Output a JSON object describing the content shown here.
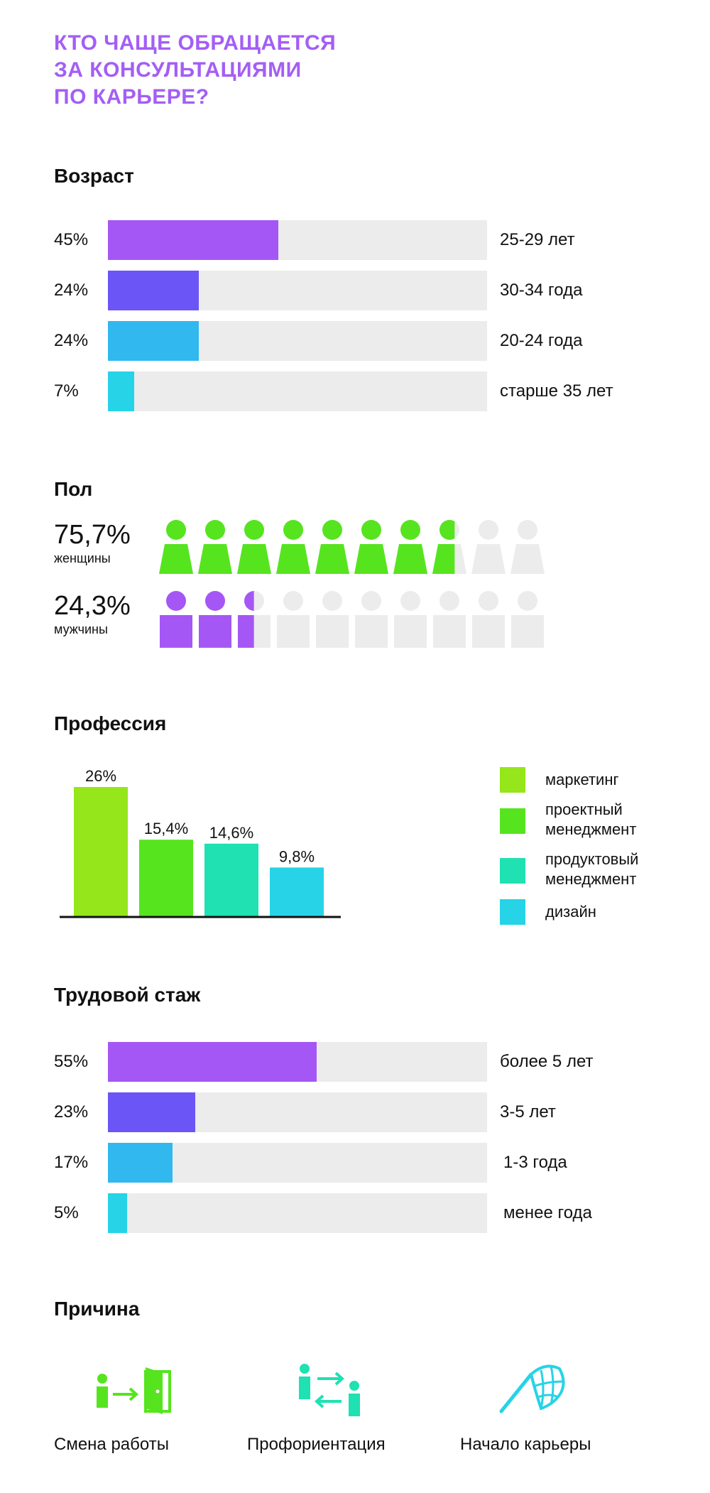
{
  "title": [
    "КТО ЧАЩЕ ОБРАЩАЕТСЯ",
    "ЗА КОНСУЛЬТАЦИЯМИ",
    "ПО КАРЬЕРЕ?"
  ],
  "colors": {
    "title": "#a45ef5",
    "track": "#ececec",
    "purple": "#a557f5",
    "violet": "#6c55f6",
    "blue": "#31b8ee",
    "cyan": "#27d3e6",
    "green": "#56e41f",
    "lime": "#95e61a",
    "teal": "#1fe1b2"
  },
  "age": {
    "title": "Возраст",
    "rows": [
      {
        "pct": "45%",
        "label": "25-29 лет",
        "color": "#a557f5"
      },
      {
        "pct": "24%",
        "label": "30-34 года",
        "color": "#6c55f6"
      },
      {
        "pct": "24%",
        "label": "20-24 года",
        "color": "#31b8ee"
      },
      {
        "pct": "7%",
        "label": "старше 35 лет",
        "color": "#27d3e6"
      }
    ]
  },
  "gender": {
    "title": "Пол",
    "women": {
      "pct": "75,7%",
      "label": "женщины",
      "color": "#56e41f"
    },
    "men": {
      "pct": "24,3%",
      "label": "мужчины",
      "color": "#a557f5"
    }
  },
  "profession": {
    "title": "Профессия",
    "legend": [
      {
        "lines": [
          "маркетинг"
        ],
        "color": "#95e61a"
      },
      {
        "lines": [
          "проектный",
          "менеджмент"
        ],
        "color": "#56e41f"
      },
      {
        "lines": [
          "продуктовый",
          "менеджмент"
        ],
        "color": "#1fe1b2"
      },
      {
        "lines": [
          "дизайн"
        ],
        "color": "#27d3e6"
      }
    ]
  },
  "experience": {
    "title": "Трудовой стаж",
    "rows": [
      {
        "pct": "55%",
        "label": "более 5 лет",
        "color": "#a557f5"
      },
      {
        "pct": "23%",
        "label": "3-5 лет",
        "color": "#6c55f6"
      },
      {
        "pct": "17%",
        "label": "1-3 года",
        "color": "#31b8ee"
      },
      {
        "pct": "5%",
        "label": "менее года",
        "color": "#27d3e6"
      }
    ]
  },
  "reason": {
    "title": "Причина",
    "items": [
      {
        "label": "Смена работы",
        "icon": "exit-door-icon"
      },
      {
        "label": "Профориентация",
        "icon": "exchange-people-icon"
      },
      {
        "label": "Начало карьеры",
        "icon": "finish-flag-icon"
      }
    ]
  },
  "chart_data": [
    {
      "type": "bar",
      "title": "Возраст",
      "categories": [
        "25-29 лет",
        "30-34 года",
        "20-24 года",
        "старше 35 лет"
      ],
      "values": [
        45,
        24,
        24,
        7
      ],
      "value_labels": [
        "45%",
        "24%",
        "24%",
        "7%"
      ],
      "orientation": "horizontal",
      "xlim": [
        0,
        100
      ]
    },
    {
      "type": "bar",
      "title": "Пол",
      "categories": [
        "женщины",
        "мужчины"
      ],
      "values": [
        75.7,
        24.3
      ],
      "value_labels": [
        "75,7%",
        "24,3%"
      ],
      "icons_per_row": 10
    },
    {
      "type": "bar",
      "title": "Профессия",
      "categories": [
        "маркетинг",
        "проектный менеджмент",
        "продуктовый менеджмент",
        "дизайн"
      ],
      "values": [
        26,
        15.4,
        14.6,
        9.8
      ],
      "value_labels": [
        "26%",
        "15,4%",
        "14,6%",
        "9,8%"
      ],
      "legend": "right"
    },
    {
      "type": "bar",
      "title": "Трудовой стаж",
      "categories": [
        "более 5 лет",
        "3-5 лет",
        "1-3 года",
        "менее года"
      ],
      "values": [
        55,
        23,
        17,
        5
      ],
      "value_labels": [
        "55%",
        "23%",
        "17%",
        "5%"
      ],
      "orientation": "horizontal",
      "xlim": [
        0,
        100
      ]
    }
  ]
}
